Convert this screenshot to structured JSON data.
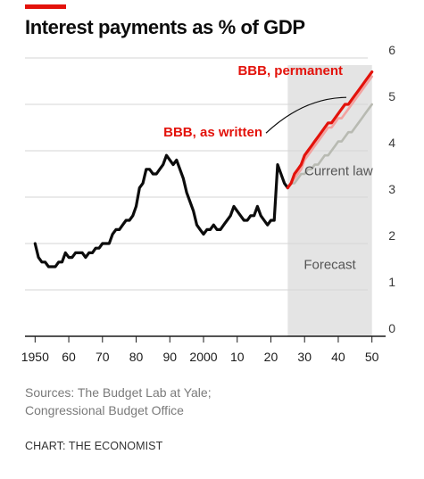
{
  "header": {
    "title": "Interest payments as % of GDP",
    "accent_color": "#e3120b"
  },
  "footer": {
    "sources_line1": "Sources: The Budget Lab at Yale;",
    "sources_line2": "Congressional Budget Office",
    "credit": "CHART: THE ECONOMIST"
  },
  "chart_data": {
    "type": "line",
    "title": "Interest payments as % of GDP",
    "xlabel": "",
    "ylabel": "",
    "xlim": [
      1947,
      2053
    ],
    "ylim": [
      0,
      6
    ],
    "x_ticks": [
      1950,
      1960,
      1970,
      1980,
      1990,
      2000,
      2010,
      2020,
      2030,
      2040,
      2050
    ],
    "x_tick_labels": [
      "1950",
      "60",
      "70",
      "80",
      "90",
      "2000",
      "10",
      "20",
      "30",
      "40",
      "50"
    ],
    "y_ticks": [
      0,
      1,
      2,
      3,
      4,
      5,
      6
    ],
    "y_tick_labels": [
      "0",
      "1",
      "2",
      "3",
      "4",
      "5",
      "6"
    ],
    "y_axis_side": "right",
    "grid": true,
    "shaded_region": {
      "x_from": 2025,
      "x_to": 2050,
      "label": "Forecast",
      "color": "#e4e4e4"
    },
    "series": [
      {
        "name": "",
        "color": "#0c0c0c",
        "x": [
          1950,
          1951,
          1952,
          1953,
          1954,
          1955,
          1956,
          1957,
          1958,
          1959,
          1960,
          1961,
          1962,
          1963,
          1964,
          1965,
          1966,
          1967,
          1968,
          1969,
          1970,
          1971,
          1972,
          1973,
          1974,
          1975,
          1976,
          1977,
          1978,
          1979,
          1980,
          1981,
          1982,
          1983,
          1984,
          1985,
          1986,
          1987,
          1988,
          1989,
          1990,
          1991,
          1992,
          1993,
          1994,
          1995,
          1996,
          1997,
          1998,
          1999,
          2000,
          2001,
          2002,
          2003,
          2004,
          2005,
          2006,
          2007,
          2008,
          2009,
          2010,
          2011,
          2012,
          2013,
          2014,
          2015,
          2016,
          2017,
          2018,
          2019,
          2020,
          2021,
          2022,
          2023,
          2024,
          2025
        ],
        "values": [
          2.0,
          1.7,
          1.6,
          1.6,
          1.5,
          1.5,
          1.5,
          1.6,
          1.6,
          1.8,
          1.7,
          1.7,
          1.8,
          1.8,
          1.8,
          1.7,
          1.8,
          1.8,
          1.9,
          1.9,
          2.0,
          2.0,
          2.0,
          2.2,
          2.3,
          2.3,
          2.4,
          2.5,
          2.5,
          2.6,
          2.8,
          3.2,
          3.3,
          3.6,
          3.6,
          3.5,
          3.5,
          3.6,
          3.7,
          3.9,
          3.8,
          3.7,
          3.8,
          3.6,
          3.4,
          3.1,
          2.9,
          2.7,
          2.4,
          2.3,
          2.2,
          2.3,
          2.3,
          2.4,
          2.3,
          2.3,
          2.4,
          2.5,
          2.6,
          2.8,
          2.7,
          2.6,
          2.5,
          2.5,
          2.6,
          2.6,
          2.8,
          2.6,
          2.5,
          2.4,
          2.5,
          2.5,
          3.7,
          3.5,
          3.3,
          3.2
        ]
      },
      {
        "name": "Current law",
        "color": "#b8bab2",
        "x": [
          2025,
          2026,
          2027,
          2028,
          2029,
          2030,
          2031,
          2032,
          2033,
          2034,
          2035,
          2036,
          2037,
          2038,
          2039,
          2040,
          2041,
          2042,
          2043,
          2044,
          2045,
          2046,
          2047,
          2048,
          2049,
          2050
        ],
        "values": [
          3.2,
          3.3,
          3.3,
          3.4,
          3.5,
          3.5,
          3.6,
          3.6,
          3.7,
          3.7,
          3.8,
          3.9,
          3.9,
          4.0,
          4.1,
          4.2,
          4.2,
          4.3,
          4.4,
          4.4,
          4.5,
          4.6,
          4.7,
          4.8,
          4.9,
          5.0
        ]
      },
      {
        "name": "BBB, as written",
        "color": "#f2a2a0",
        "x": [
          2025,
          2026,
          2027,
          2028,
          2029,
          2030,
          2031,
          2032,
          2033,
          2034,
          2035,
          2036,
          2037,
          2038,
          2039,
          2040,
          2041,
          2042,
          2043,
          2044,
          2045,
          2046,
          2047,
          2048,
          2049,
          2050
        ],
        "values": [
          3.2,
          3.3,
          3.4,
          3.5,
          3.6,
          3.8,
          3.9,
          4.0,
          4.1,
          4.2,
          4.3,
          4.4,
          4.5,
          4.5,
          4.6,
          4.7,
          4.7,
          4.8,
          4.9,
          5.0,
          5.1,
          5.2,
          5.3,
          5.4,
          5.5,
          5.6
        ]
      },
      {
        "name": "BBB, permanent",
        "color": "#e3120b",
        "x": [
          2025,
          2026,
          2027,
          2028,
          2029,
          2030,
          2031,
          2032,
          2033,
          2034,
          2035,
          2036,
          2037,
          2038,
          2039,
          2040,
          2041,
          2042,
          2043,
          2044,
          2045,
          2046,
          2047,
          2048,
          2049,
          2050
        ],
        "values": [
          3.2,
          3.3,
          3.5,
          3.6,
          3.7,
          3.9,
          4.0,
          4.1,
          4.2,
          4.3,
          4.4,
          4.5,
          4.6,
          4.6,
          4.7,
          4.8,
          4.9,
          5.0,
          5.0,
          5.1,
          5.2,
          5.3,
          5.4,
          5.5,
          5.6,
          5.7
        ]
      }
    ],
    "annotations": [
      {
        "text": "BBB, permanent",
        "color": "#e3120b"
      },
      {
        "text": "BBB, as written",
        "color": "#e3120b"
      },
      {
        "text": "Current law",
        "color": "#555555"
      },
      {
        "text": "Forecast",
        "color": "#555555"
      }
    ]
  }
}
